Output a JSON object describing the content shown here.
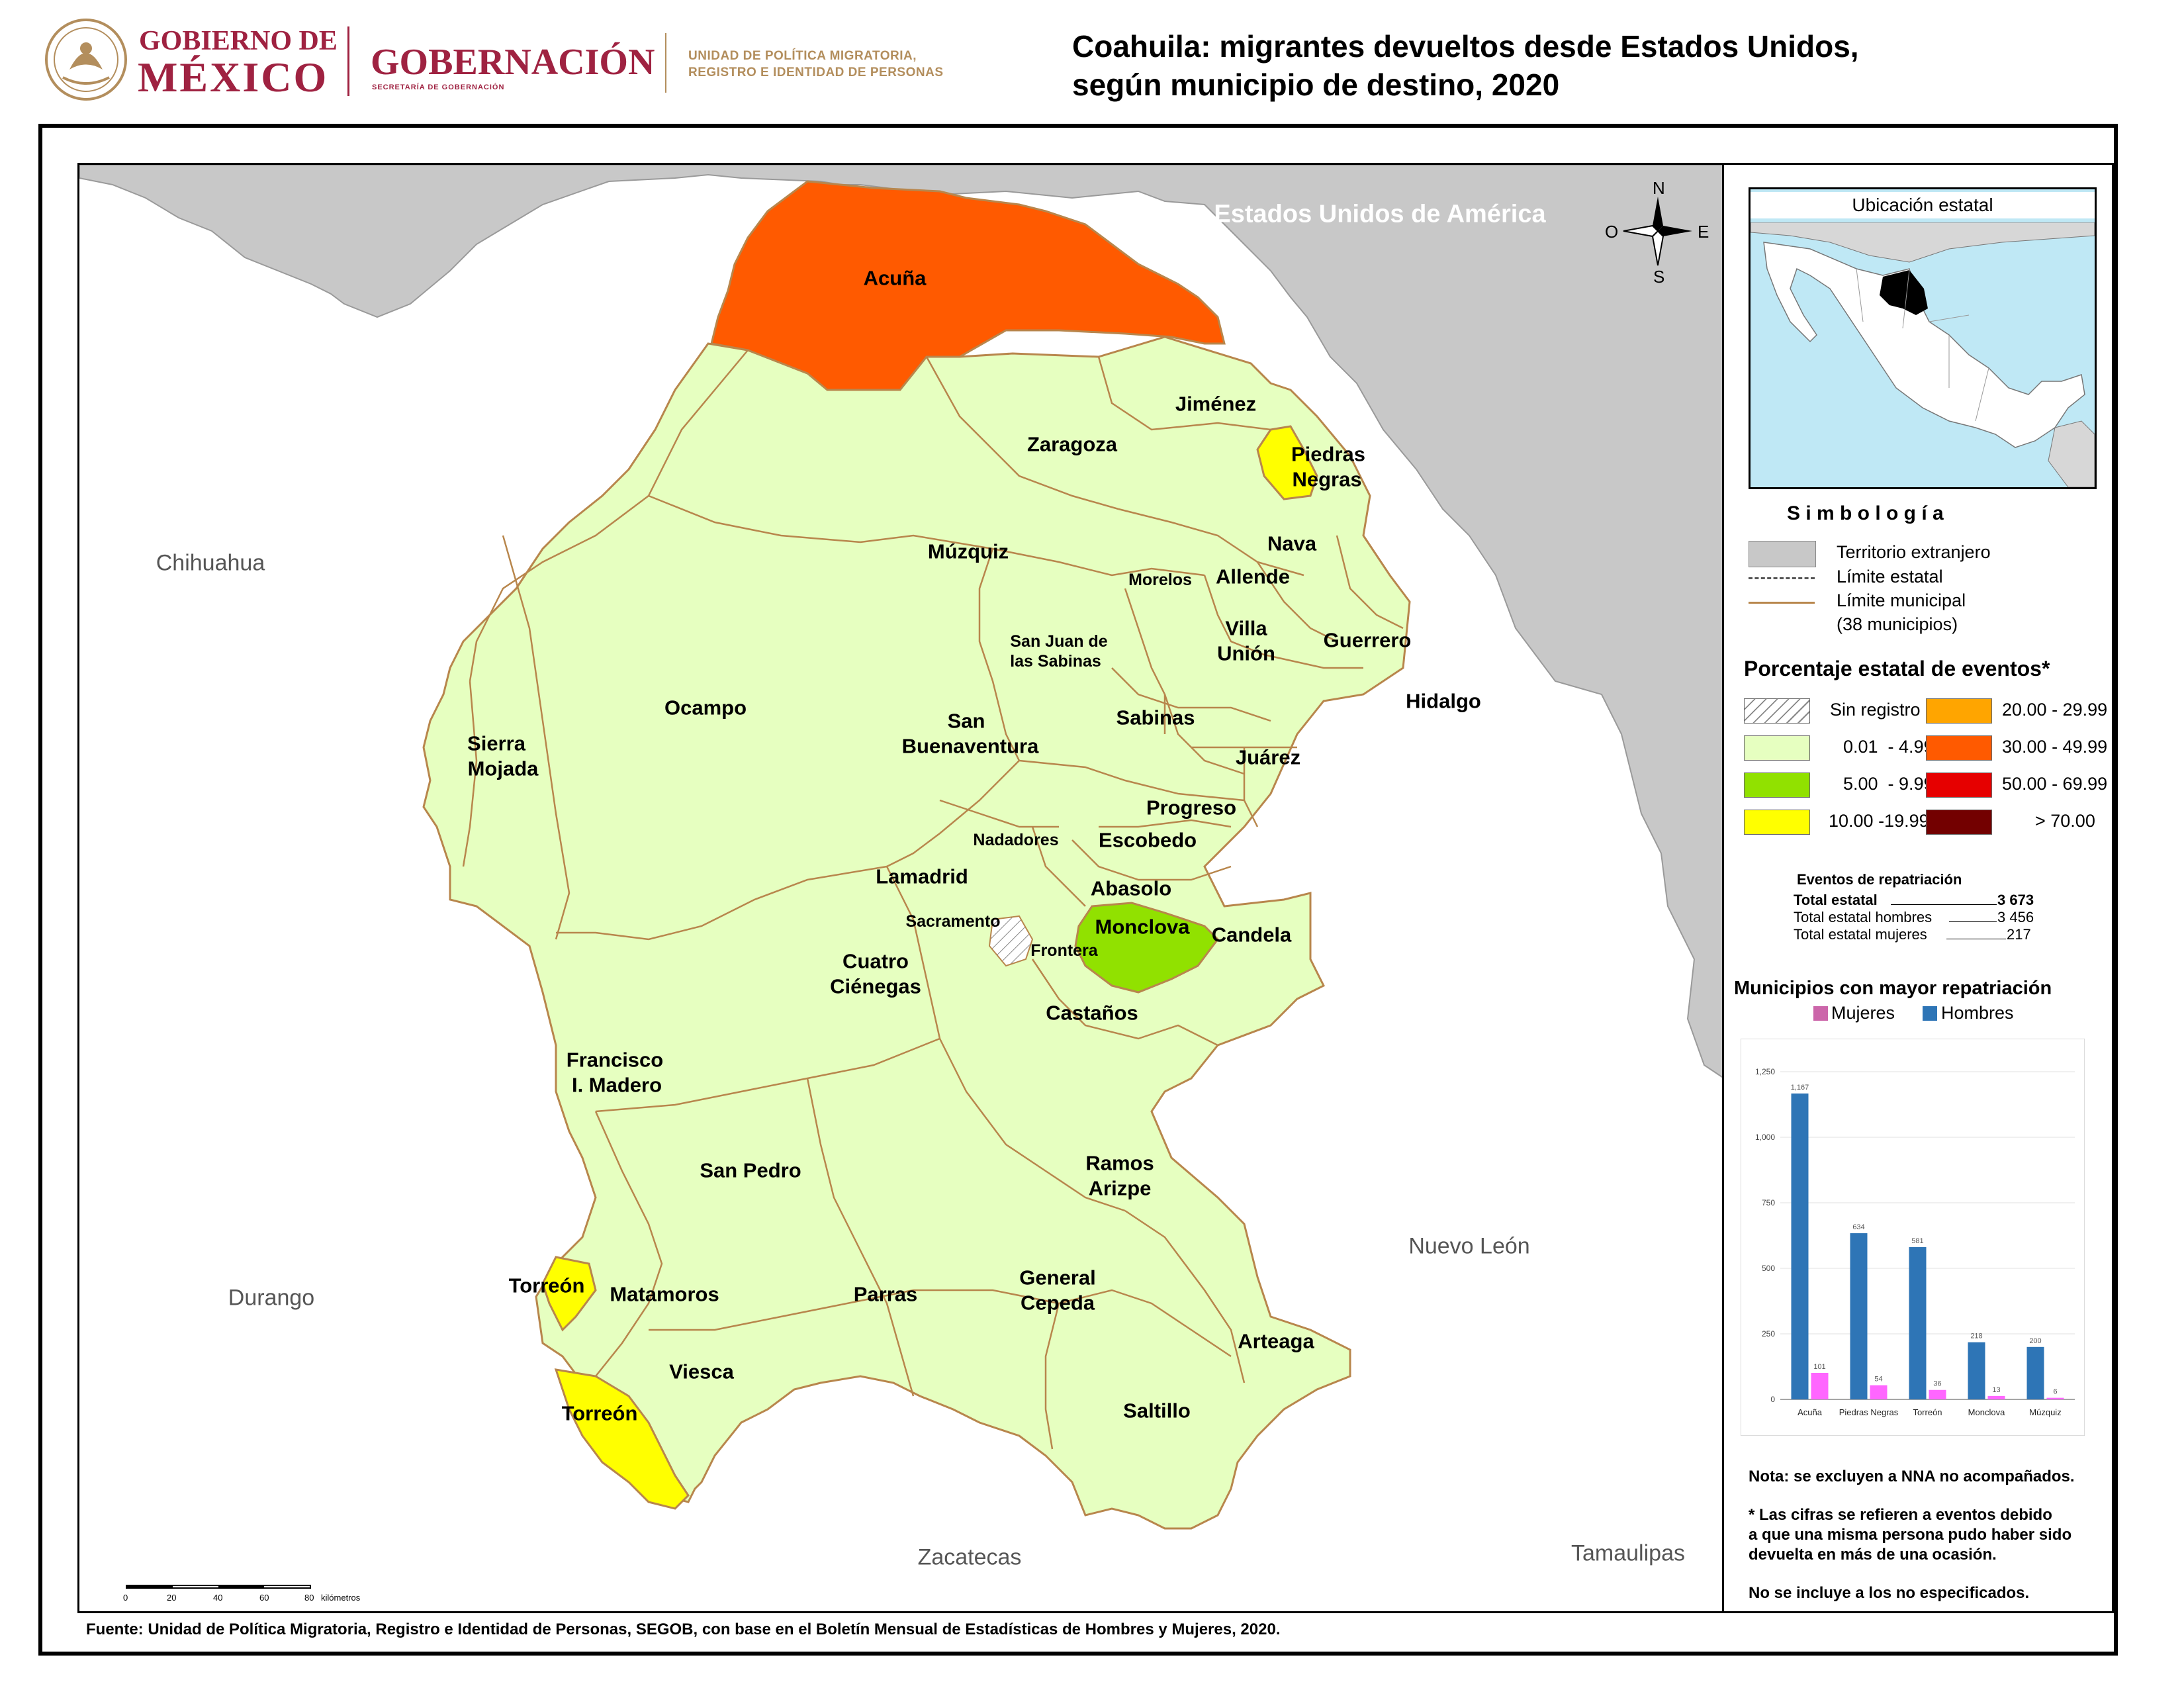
{
  "header": {
    "gob_line1": "GOBIERNO DE",
    "gob_line2": "MÉXICO",
    "gobernacion": "GOBERNACIÓN",
    "gobernacion_sub": "SECRETARÍA DE GOBERNACIÓN",
    "unidad_line1": "UNIDAD DE POLÍTICA MIGRATORIA,",
    "unidad_line2": "REGISTRO E IDENTIDAD DE PERSONAS",
    "title_line1": "Coahuila: migrantes devueltos desde Estados Unidos,",
    "title_line2": "según municipio de destino, 2020"
  },
  "map": {
    "foreign_label": "Estados Unidos de América",
    "states": {
      "chihuahua": "Chihuahua",
      "durango": "Durango",
      "zacatecas": "Zacatecas",
      "nuevo_leon": "Nuevo León",
      "tamaulipas": "Tamaulipas"
    },
    "compass": {
      "n": "N",
      "s": "S",
      "e": "E",
      "o": "O"
    },
    "scale": {
      "ticks": [
        "0",
        "20",
        "40",
        "60",
        "80"
      ],
      "unit": "kilómetros"
    },
    "municipalities": {
      "acuna": "Acuña",
      "jimenez": "Jiménez",
      "zaragoza": "Zaragoza",
      "piedras_negras_1": "Piedras",
      "piedras_negras_2": "Negras",
      "muzquiz": "Múzquiz",
      "nava": "Nava",
      "morelos": "Morelos",
      "allende": "Allende",
      "san_juan_1": "San Juan de",
      "san_juan_2": "las Sabinas",
      "villa_union_1": "Villa",
      "villa_union_2": "Unión",
      "guerrero": "Guerrero",
      "hidalgo": "Hidalgo",
      "ocampo": "Ocampo",
      "sierra_mojada_1": "Sierra",
      "sierra_mojada_2": "Mojada",
      "san_buenaventura_1": "San",
      "san_buenaventura_2": "Buenaventura",
      "sabinas": "Sabinas",
      "juarez": "Juárez",
      "progreso": "Progreso",
      "nadadores": "Nadadores",
      "escobedo": "Escobedo",
      "lamadrid": "Lamadrid",
      "abasolo": "Abasolo",
      "sacramento": "Sacramento",
      "monclova": "Monclova",
      "candela": "Candela",
      "frontera": "Frontera",
      "cuatro_cienegas_1": "Cuatro",
      "cuatro_cienegas_2": "Ciénegas",
      "castanos": "Castaños",
      "francisco_madero_1": "Francisco",
      "francisco_madero_2": "I. Madero",
      "san_pedro": "San Pedro",
      "ramos_arizpe_1": "Ramos",
      "ramos_arizpe_2": "Arizpe",
      "torreon_a": "Torreón",
      "matamoros": "Matamoros",
      "parras": "Parras",
      "general_cepeda_1": "General",
      "general_cepeda_2": "Cepeda",
      "arteaga": "Arteaga",
      "viesca": "Viesca",
      "torreon_b": "Torreón",
      "saltillo": "Saltillo"
    }
  },
  "inset": {
    "title": "Ubicación estatal"
  },
  "legend": {
    "title": "S i m b o l o g í a",
    "items": [
      "Territorio extranjero",
      "Límite estatal",
      "Límite municipal",
      "(38 municipios)"
    ],
    "pct_title": "Porcentaje estatal de eventos*",
    "classes": [
      {
        "label": "Sin registro",
        "color": "hatch"
      },
      {
        "label": "20.00 - 29.99",
        "color": "#ffa500"
      },
      {
        "label": "0.01  - 4.99",
        "color": "#e6ffc0"
      },
      {
        "label": "30.00 - 49.99",
        "color": "#ff5a00"
      },
      {
        "label": "5.00  - 9.99",
        "color": "#91e100"
      },
      {
        "label": "50.00 - 69.99",
        "color": "#e60000"
      },
      {
        "label": "10.00 -19.99",
        "color": "#ffff00"
      },
      {
        "label": "> 70.00",
        "color": "#730000"
      }
    ],
    "colors": {
      "foreign": "#c8c8c8",
      "base": "#e6ffc0",
      "acuna": "#ff5a00",
      "monclova": "#91e100",
      "yellow": "#ffff00",
      "border": "#b8864c",
      "water": "#bfe8f5"
    }
  },
  "stats": {
    "title": "Eventos de repatriación",
    "rows": [
      {
        "label": "Total estatal",
        "value": "3 673"
      },
      {
        "label": "Total estatal hombres",
        "value": "3 456"
      },
      {
        "label": "Total estatal mujeres",
        "value": "217"
      }
    ]
  },
  "chart_data": {
    "type": "bar",
    "title": "Municipios con mayor repatriación",
    "categories": [
      "Acuña",
      "Piedras Negras",
      "Torreón",
      "Monclova",
      "Múzquiz"
    ],
    "series": [
      {
        "name": "Mujeres",
        "values": [
          101,
          54,
          36,
          13,
          6
        ],
        "color": "#ff66ff"
      },
      {
        "name": "Hombres",
        "values": [
          1167,
          634,
          581,
          218,
          200
        ],
        "color": "#2e75b6"
      }
    ],
    "ylim": [
      0,
      1250
    ],
    "yticks": [
      "0",
      "250",
      "500",
      "750",
      "1,000",
      "1,250"
    ],
    "value_labels_mujeres": [
      "101",
      "54",
      "36",
      "13",
      "6"
    ],
    "value_labels_hombres": [
      "1,167",
      "634",
      "581",
      "218",
      "200"
    ],
    "legend_placement": "top"
  },
  "notes": {
    "n1": "Nota: se excluyen a NNA no acompañados.",
    "n2a": "* Las cifras se refieren a eventos debido",
    "n2b": "a que una misma persona pudo haber sido",
    "n2c": "devuelta en más de una ocasión.",
    "n3": "No se incluye a los no especificados."
  },
  "footer": {
    "source": "Fuente: Unidad de Política Migratoria, Registro e Identidad de Personas, SEGOB, con base en el Boletín Mensual de Estadísticas de Hombres y Mujeres, 2020."
  }
}
